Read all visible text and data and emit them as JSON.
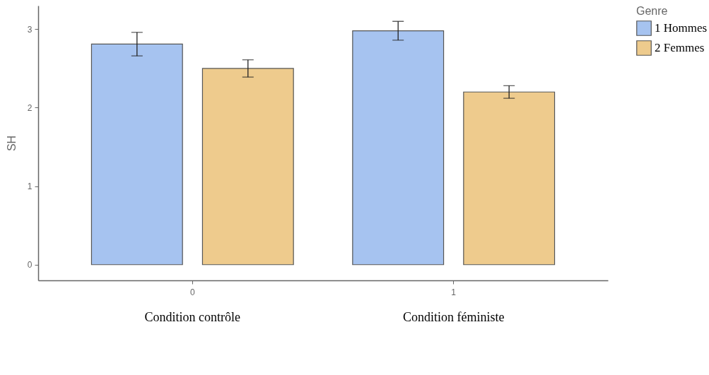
{
  "chart_data": {
    "type": "bar",
    "ylabel": "SH",
    "legend_title": "Genre",
    "categories": [
      "0",
      "1"
    ],
    "series": [
      {
        "name": "1 Hommes",
        "color": "#a6c3f0",
        "values": [
          2.81,
          2.98
        ],
        "errors": [
          0.15,
          0.12
        ]
      },
      {
        "name": "2 Femmes",
        "color": "#eecb8d",
        "values": [
          2.5,
          2.2
        ],
        "errors": [
          0.11,
          0.08
        ]
      }
    ],
    "ylim": [
      -0.2,
      3.3
    ],
    "yticks": [
      0,
      1,
      2,
      3
    ],
    "grid": false,
    "legend": "right",
    "annotations": [
      "Condition contrôle",
      "Condition féministe"
    ]
  }
}
